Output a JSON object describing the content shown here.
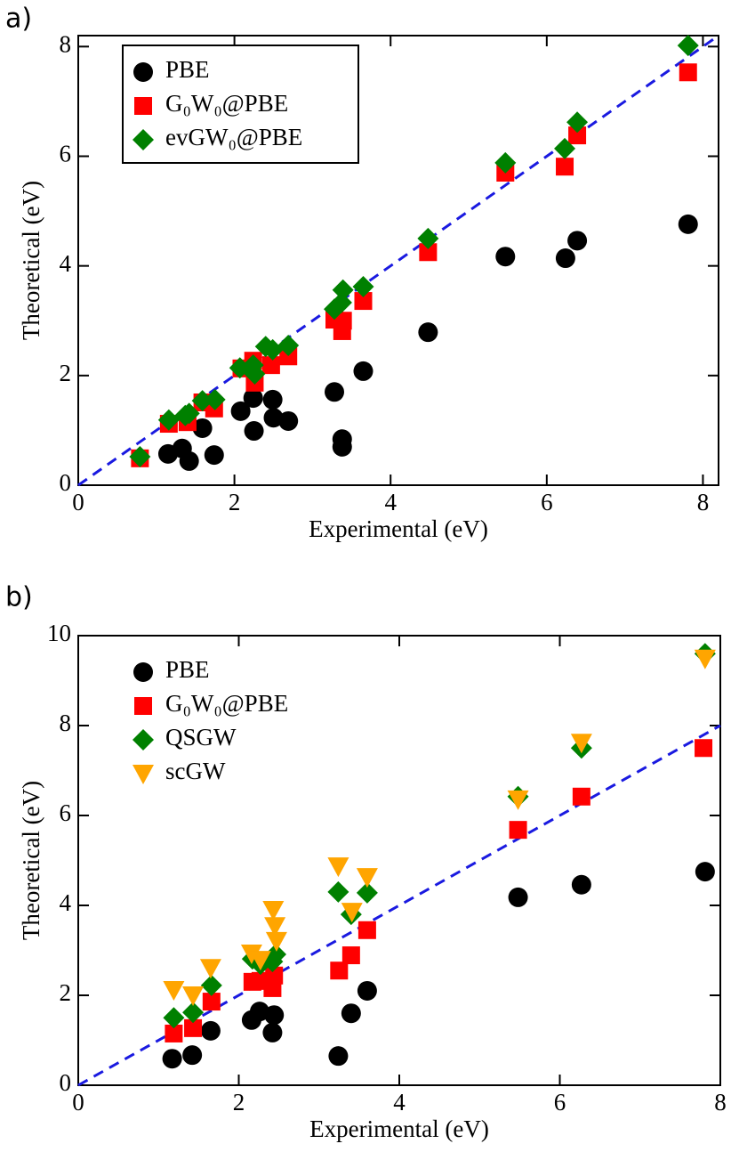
{
  "chart_data": [
    {
      "type": "scatter",
      "label": "a)",
      "xlabel": "Experimental (eV)",
      "ylabel": "Theoretical (eV)",
      "xlim": [
        0,
        8.2
      ],
      "ylim": [
        0,
        8.2
      ],
      "xticks": [
        0,
        2,
        4,
        6,
        8
      ],
      "yticks": [
        0,
        2,
        4,
        6,
        8
      ],
      "legend": "upper left",
      "legend_frame": true,
      "identity_line_color": "#1a1ae0",
      "series": [
        {
          "name": "PBE",
          "color": "#000000",
          "marker": "circle",
          "x": [
            1.15,
            1.33,
            1.42,
            1.59,
            1.74,
            2.08,
            2.24,
            2.25,
            2.49,
            2.5,
            2.69,
            3.28,
            3.38,
            3.38,
            3.65,
            4.48,
            5.47,
            6.24,
            6.39,
            7.81
          ],
          "y": [
            0.57,
            0.67,
            0.44,
            1.04,
            0.55,
            1.35,
            1.59,
            0.99,
            1.56,
            1.23,
            1.17,
            1.7,
            0.84,
            0.7,
            2.08,
            2.79,
            4.17,
            4.14,
            4.46,
            4.76
          ]
        },
        {
          "name": "G₀W₀@PBE",
          "color": "#ff0000",
          "marker": "square",
          "x": [
            0.79,
            1.16,
            1.4,
            1.59,
            1.74,
            2.09,
            2.26,
            2.24,
            2.47,
            2.69,
            3.28,
            3.38,
            3.39,
            3.65,
            4.48,
            5.47,
            6.23,
            6.39,
            7.81
          ],
          "y": [
            0.49,
            1.12,
            1.15,
            1.51,
            1.4,
            2.13,
            1.87,
            2.27,
            2.19,
            2.35,
            3.02,
            2.81,
            3.0,
            3.36,
            4.25,
            5.7,
            5.81,
            6.38,
            7.53
          ]
        },
        {
          "name": "evGW₀@PBE",
          "color": "#008000",
          "marker": "diamond",
          "x": [
            0.79,
            1.16,
            1.37,
            1.42,
            1.59,
            1.75,
            2.07,
            2.24,
            2.26,
            2.4,
            2.49,
            2.69,
            3.28,
            3.37,
            3.39,
            3.65,
            4.48,
            5.47,
            6.23,
            6.39,
            7.81
          ],
          "y": [
            0.52,
            1.19,
            1.27,
            1.31,
            1.54,
            1.56,
            2.14,
            2.19,
            2.03,
            2.53,
            2.47,
            2.55,
            3.21,
            3.33,
            3.56,
            3.62,
            4.5,
            5.88,
            6.14,
            6.62,
            8.02
          ]
        }
      ]
    },
    {
      "type": "scatter",
      "label": "b)",
      "xlabel": "Experimental (eV)",
      "ylabel": "Theoretical (eV)",
      "xlim": [
        0,
        8
      ],
      "ylim": [
        0,
        10
      ],
      "xticks": [
        0,
        2,
        4,
        6,
        8
      ],
      "yticks": [
        0,
        2,
        4,
        6,
        8,
        10
      ],
      "legend": "upper left",
      "legend_frame": false,
      "identity_line_color": "#1a1ae0",
      "series": [
        {
          "name": "PBE",
          "color": "#000000",
          "marker": "circle",
          "x": [
            1.17,
            1.42,
            1.65,
            2.16,
            2.26,
            2.44,
            2.42,
            3.24,
            3.4,
            3.6,
            5.48,
            6.27,
            7.81
          ],
          "y": [
            0.59,
            0.67,
            1.21,
            1.45,
            1.64,
            1.56,
            1.17,
            0.65,
            1.6,
            2.1,
            4.18,
            4.46,
            4.75
          ]
        },
        {
          "name": "G₀W₀@PBE",
          "color": "#ff0000",
          "marker": "square",
          "x": [
            1.19,
            1.43,
            1.66,
            2.17,
            2.27,
            2.42,
            2.44,
            3.25,
            3.4,
            3.6,
            5.48,
            6.27,
            7.79
          ],
          "y": [
            1.15,
            1.27,
            1.86,
            2.3,
            2.32,
            2.16,
            2.44,
            2.55,
            2.89,
            3.45,
            5.68,
            6.42,
            7.5
          ]
        },
        {
          "name": "QSGW",
          "color": "#008000",
          "marker": "diamond",
          "x": [
            1.19,
            1.43,
            1.66,
            2.17,
            2.27,
            2.42,
            2.46,
            3.24,
            3.4,
            3.6,
            5.48,
            6.27,
            7.81
          ],
          "y": [
            1.5,
            1.62,
            2.22,
            2.81,
            2.69,
            2.75,
            2.91,
            4.3,
            3.8,
            4.28,
            6.42,
            7.5,
            9.6
          ]
        },
        {
          "name": "scGW",
          "color": "#ffa500",
          "marker": "triangle-down",
          "x": [
            1.19,
            1.43,
            1.65,
            2.16,
            2.27,
            2.43,
            2.45,
            2.47,
            3.24,
            3.41,
            3.6,
            5.48,
            6.27,
            7.81
          ],
          "y": [
            2.12,
            2.0,
            2.61,
            2.93,
            2.79,
            3.9,
            3.54,
            3.21,
            4.87,
            3.86,
            4.63,
            6.36,
            7.62,
            9.49
          ]
        }
      ]
    }
  ]
}
